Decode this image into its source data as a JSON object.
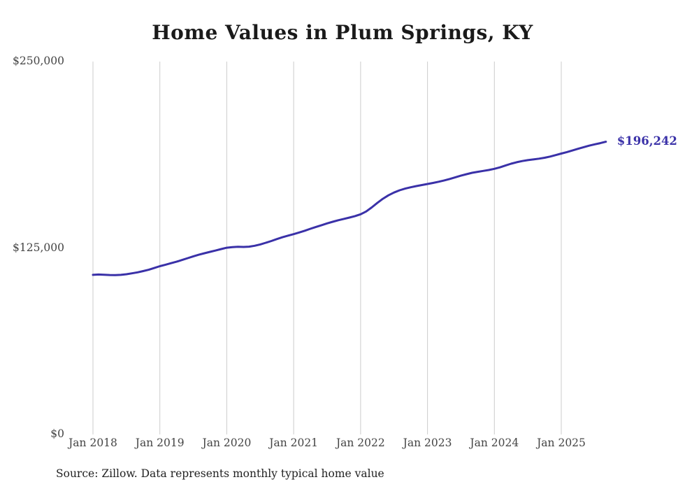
{
  "title": "Home Values in Plum Springs, KY",
  "source": "Source: Zillow. Data represents monthly typical home value",
  "colors": {
    "line": "#3a31a8",
    "grid": "#cccccc",
    "axis_text": "#444444",
    "title_text": "#1a1a1a"
  },
  "chart_data": {
    "type": "line",
    "title": "Home Values in Plum Springs, KY",
    "xlabel": "",
    "ylabel": "",
    "ylim": [
      0,
      250000
    ],
    "grid": "vertical-only",
    "legend": "none",
    "end_label": "$196,242",
    "x_start": "Jan 2018",
    "x_end": "Sep 2025",
    "x_interval": "monthly",
    "x_tick_labels": [
      "Jan 2018",
      "Jan 2019",
      "Jan 2020",
      "Jan 2021",
      "Jan 2022",
      "Jan 2023",
      "Jan 2024",
      "Jan 2025"
    ],
    "y_ticks": [
      0,
      125000,
      250000
    ],
    "y_tick_labels": [
      "$0",
      "$125,000",
      "$250,000"
    ],
    "series_name": "Typical home value",
    "values": [
      107000,
      107200,
      107100,
      106900,
      106800,
      107000,
      107400,
      108000,
      108700,
      109500,
      110400,
      111600,
      112800,
      113800,
      114800,
      115800,
      117000,
      118200,
      119400,
      120500,
      121500,
      122400,
      123300,
      124300,
      125200,
      125600,
      125800,
      125700,
      125900,
      126500,
      127400,
      128500,
      129700,
      131000,
      132200,
      133300,
      134300,
      135400,
      136600,
      137900,
      139100,
      140300,
      141500,
      142600,
      143600,
      144500,
      145400,
      146400,
      147600,
      149500,
      152200,
      155200,
      158000,
      160300,
      162200,
      163700,
      164800,
      165700,
      166500,
      167200,
      167900,
      168600,
      169400,
      170300,
      171300,
      172400,
      173500,
      174500,
      175400,
      176100,
      176700,
      177300,
      178100,
      179100,
      180300,
      181500,
      182500,
      183300,
      183900,
      184400,
      184900,
      185500,
      186300,
      187300,
      188300,
      189300,
      190400,
      191500,
      192600,
      193600,
      194500,
      195300,
      196242
    ]
  }
}
